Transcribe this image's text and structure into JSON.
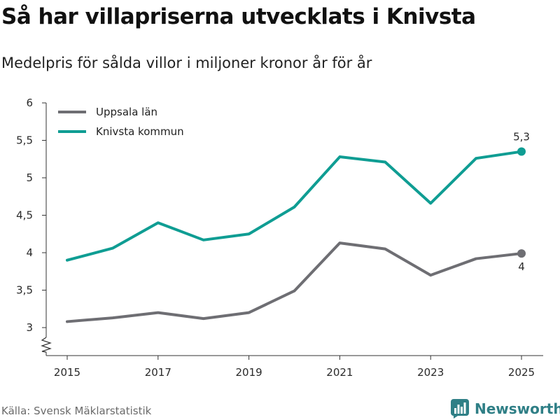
{
  "title": "Så har villapriserna utvecklats i Knivsta",
  "subtitle": "Medelpris för sålda villor i miljoner kronor år för år",
  "source": "Källa: Svensk Mäklarstatistik",
  "brand": {
    "name": "Newsworthy",
    "icon": "bar-chart-logo-icon",
    "color": "#2f7f86"
  },
  "chart_data": {
    "type": "line",
    "x": [
      2015,
      2016,
      2017,
      2018,
      2019,
      2020,
      2021,
      2022,
      2023,
      2024,
      2025
    ],
    "x_ticks": [
      2015,
      2017,
      2019,
      2021,
      2023,
      2025
    ],
    "x_tick_labels": [
      "2015",
      "2017",
      "2019",
      "2021",
      "2023",
      "2025"
    ],
    "ylim": [
      2.8,
      6
    ],
    "y_ticks": [
      3,
      3.5,
      4,
      4.5,
      5,
      5.5,
      6
    ],
    "y_tick_labels": [
      "3",
      "3,5",
      "4",
      "4,5",
      "5",
      "5,5",
      "6"
    ],
    "y_axis_break": true,
    "grid": false,
    "legend_position": "top-left",
    "series": [
      {
        "name": "Uppsala län",
        "color": "#6e6e73",
        "values": [
          3.08,
          3.13,
          3.2,
          3.12,
          3.2,
          3.49,
          4.13,
          4.05,
          3.7,
          3.92,
          3.99
        ],
        "end_label": "4"
      },
      {
        "name": "Knivsta kommun",
        "color": "#0f9d93",
        "values": [
          3.9,
          4.06,
          4.4,
          4.17,
          4.25,
          4.61,
          5.28,
          5.21,
          4.66,
          5.26,
          5.35
        ],
        "end_label": "5,3"
      }
    ],
    "xlabel": "",
    "ylabel": ""
  }
}
